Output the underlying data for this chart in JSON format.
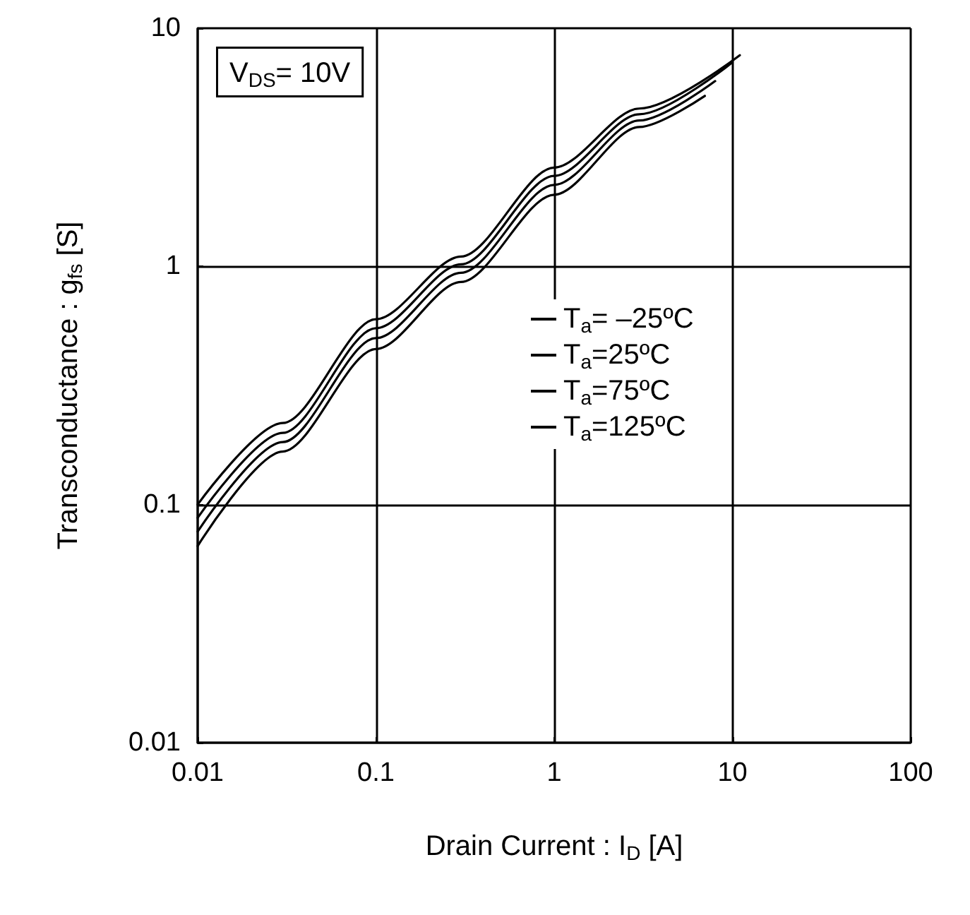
{
  "chart_data": {
    "type": "line",
    "xlabel": "Drain Current : I$_{D}$ [A]",
    "ylabel": "Transconductance : g$_{fs}$ [S]",
    "annotations": [
      "V$_{DS}$= 10V"
    ],
    "log": "xy",
    "xlim": [
      0.01,
      100
    ],
    "ylim": [
      0.01,
      10
    ],
    "xticks": [
      0.01,
      0.1,
      1,
      10,
      100
    ],
    "yticks": [
      0.01,
      0.1,
      1,
      10
    ],
    "grid": true,
    "legend": "right",
    "marker": "none",
    "line_style": "solid",
    "series": [
      {
        "name": "T$_{a}$= –25ºC",
        "color": "#000000",
        "x": [
          0.01,
          0.03,
          0.1,
          0.3,
          1,
          3,
          11
        ],
        "values": [
          0.1,
          0.22,
          0.6,
          1.1,
          2.6,
          4.6,
          7.7
        ]
      },
      {
        "name": "T$_{a}$=25ºC",
        "color": "#000000",
        "x": [
          0.01,
          0.03,
          0.1,
          0.3,
          1,
          3,
          10
        ],
        "values": [
          0.088,
          0.2,
          0.55,
          1.02,
          2.4,
          4.35,
          7.2
        ]
      },
      {
        "name": "T$_{a}$=75ºC",
        "color": "#000000",
        "x": [
          0.01,
          0.03,
          0.1,
          0.3,
          1,
          3,
          8
        ],
        "values": [
          0.077,
          0.183,
          0.5,
          0.94,
          2.2,
          4.1,
          6.0
        ]
      },
      {
        "name": "T$_{a}$=125ºC",
        "color": "#000000",
        "x": [
          0.01,
          0.03,
          0.1,
          0.3,
          1,
          3,
          7
        ],
        "values": [
          0.067,
          0.167,
          0.45,
          0.86,
          2.0,
          3.85,
          5.2
        ]
      }
    ]
  }
}
